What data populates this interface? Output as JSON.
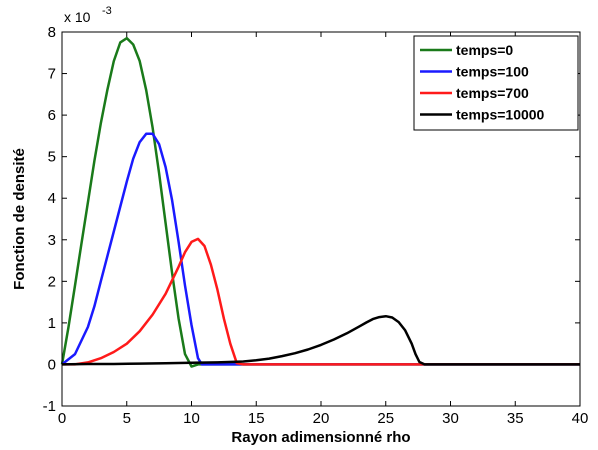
{
  "chart_data": {
    "type": "line",
    "title": "",
    "xlabel": "Rayon adimensionné rho",
    "ylabel": "Fonction de densité",
    "xlim": [
      0,
      40
    ],
    "ylim": [
      -1,
      8
    ],
    "y_scale_label": "x 10",
    "y_scale_exponent": "-3",
    "xticks": [
      0,
      5,
      10,
      15,
      20,
      25,
      30,
      35,
      40
    ],
    "yticks": [
      -1,
      0,
      1,
      2,
      3,
      4,
      5,
      6,
      7,
      8
    ],
    "grid": false,
    "legend_position": "top-right",
    "series": [
      {
        "name": "temps=0",
        "color": "#1a7a1a",
        "x": [
          0,
          0.5,
          1,
          1.5,
          2,
          2.5,
          3,
          3.5,
          4,
          4.5,
          5,
          5.5,
          6,
          6.5,
          7,
          7.5,
          8,
          8.5,
          9,
          9.5,
          10,
          10.5,
          40
        ],
        "y": [
          0,
          0.9,
          1.9,
          2.9,
          3.9,
          4.9,
          5.8,
          6.6,
          7.3,
          7.75,
          7.85,
          7.7,
          7.3,
          6.6,
          5.7,
          4.6,
          3.4,
          2.2,
          1.1,
          0.25,
          -0.05,
          0,
          0
        ]
      },
      {
        "name": "temps=100",
        "color": "#1a1aff",
        "x": [
          0,
          1,
          2,
          2.5,
          3,
          3.5,
          4,
          4.5,
          5,
          5.5,
          6,
          6.5,
          7,
          7.5,
          8,
          8.5,
          9,
          9.5,
          10,
          10.5,
          10.8,
          11,
          40
        ],
        "y": [
          0,
          0.25,
          0.9,
          1.4,
          2.0,
          2.6,
          3.2,
          3.8,
          4.4,
          4.95,
          5.35,
          5.55,
          5.55,
          5.3,
          4.75,
          3.95,
          2.95,
          1.9,
          0.95,
          0.15,
          0,
          0,
          0
        ]
      },
      {
        "name": "temps=700",
        "color": "#ff1a1a",
        "x": [
          0,
          1,
          2,
          3,
          4,
          5,
          6,
          7,
          8,
          9,
          9.5,
          10,
          10.5,
          11,
          11.5,
          12,
          12.5,
          13,
          13.5,
          14,
          40
        ],
        "y": [
          0,
          0,
          0.05,
          0.15,
          0.3,
          0.5,
          0.8,
          1.2,
          1.7,
          2.35,
          2.7,
          2.95,
          3.02,
          2.85,
          2.4,
          1.8,
          1.1,
          0.5,
          0.03,
          0,
          0
        ]
      },
      {
        "name": "temps=10000",
        "color": "#000000",
        "x": [
          0,
          2,
          4,
          6,
          8,
          10,
          12,
          14,
          15,
          16,
          17,
          18,
          19,
          20,
          21,
          22,
          23,
          23.5,
          24,
          24.5,
          25,
          25.5,
          26,
          26.5,
          27,
          27.3,
          27.6,
          28,
          40
        ],
        "y": [
          0,
          0.01,
          0.01,
          0.02,
          0.03,
          0.04,
          0.05,
          0.07,
          0.1,
          0.14,
          0.2,
          0.27,
          0.36,
          0.47,
          0.6,
          0.75,
          0.92,
          1.01,
          1.09,
          1.14,
          1.16,
          1.13,
          1.02,
          0.82,
          0.5,
          0.25,
          0.06,
          0,
          0
        ]
      }
    ]
  }
}
